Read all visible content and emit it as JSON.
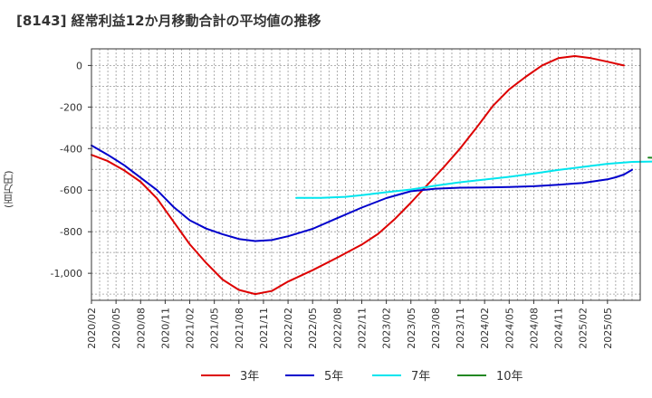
{
  "chart_data": {
    "type": "line",
    "title": "[8143]  経常利益12か月移動合計の平均値の推移",
    "ylabel": "(百万円)",
    "xlabel": "",
    "ylim": [
      -1130,
      80
    ],
    "yticks": [
      0,
      -200,
      -400,
      -600,
      -800,
      -1000
    ],
    "ytick_labels": [
      "0",
      "-200",
      "-400",
      "-600",
      "-800",
      "-1,000"
    ],
    "xticks": [
      "2020/02",
      "2020/05",
      "2020/08",
      "2020/11",
      "2021/02",
      "2021/05",
      "2021/08",
      "2021/11",
      "2022/02",
      "2022/05",
      "2022/08",
      "2022/11",
      "2023/02",
      "2023/05",
      "2023/08",
      "2023/11",
      "2024/02",
      "2024/05",
      "2024/08",
      "2024/11",
      "2025/02",
      "2025/05"
    ],
    "grid": true,
    "legend_position": "bottom",
    "series": [
      {
        "name": "3年",
        "color": "#dd0000",
        "points": [
          [
            "2020/02",
            -430
          ],
          [
            "2020/04",
            -460
          ],
          [
            "2020/06",
            -505
          ],
          [
            "2020/08",
            -560
          ],
          [
            "2020/10",
            -640
          ],
          [
            "2020/12",
            -750
          ],
          [
            "2021/02",
            -860
          ],
          [
            "2021/04",
            -950
          ],
          [
            "2021/06",
            -1030
          ],
          [
            "2021/08",
            -1080
          ],
          [
            "2021/10",
            -1100
          ],
          [
            "2021/12",
            -1085
          ],
          [
            "2022/02",
            -1040
          ],
          [
            "2022/05",
            -985
          ],
          [
            "2022/08",
            -925
          ],
          [
            "2022/11",
            -862
          ],
          [
            "2023/01",
            -810
          ],
          [
            "2023/03",
            -740
          ],
          [
            "2023/05",
            -660
          ],
          [
            "2023/07",
            -575
          ],
          [
            "2023/09",
            -490
          ],
          [
            "2023/11",
            -400
          ],
          [
            "2024/01",
            -300
          ],
          [
            "2024/03",
            -195
          ],
          [
            "2024/05",
            -115
          ],
          [
            "2024/07",
            -55
          ],
          [
            "2024/09",
            0
          ],
          [
            "2024/11",
            35
          ],
          [
            "2025/01",
            45
          ],
          [
            "2025/03",
            35
          ],
          [
            "2025/05",
            18
          ],
          [
            "2025/07",
            0
          ]
        ]
      },
      {
        "name": "5年",
        "color": "#0000cc",
        "points": [
          [
            "2020/02",
            -385
          ],
          [
            "2020/04",
            -430
          ],
          [
            "2020/06",
            -480
          ],
          [
            "2020/08",
            -540
          ],
          [
            "2020/10",
            -600
          ],
          [
            "2020/12",
            -680
          ],
          [
            "2021/02",
            -745
          ],
          [
            "2021/04",
            -785
          ],
          [
            "2021/06",
            -812
          ],
          [
            "2021/08",
            -835
          ],
          [
            "2021/10",
            -845
          ],
          [
            "2021/12",
            -840
          ],
          [
            "2022/02",
            -822
          ],
          [
            "2022/05",
            -786
          ],
          [
            "2022/08",
            -735
          ],
          [
            "2022/11",
            -684
          ],
          [
            "2023/02",
            -638
          ],
          [
            "2023/05",
            -605
          ],
          [
            "2023/08",
            -593
          ],
          [
            "2023/11",
            -588
          ],
          [
            "2024/02",
            -587
          ],
          [
            "2024/05",
            -585
          ],
          [
            "2024/08",
            -581
          ],
          [
            "2024/11",
            -574
          ],
          [
            "2025/02",
            -565
          ],
          [
            "2025/05",
            -548
          ],
          [
            "2025/06",
            -538
          ],
          [
            "2025/07",
            -525
          ],
          [
            "2025/08",
            -502
          ]
        ]
      },
      {
        "name": "7年",
        "color": "#00e5ee",
        "points": [
          [
            "2022/03",
            -637
          ],
          [
            "2022/06",
            -637
          ],
          [
            "2022/09",
            -632
          ],
          [
            "2022/11",
            -624
          ],
          [
            "2023/02",
            -610
          ],
          [
            "2023/05",
            -597
          ],
          [
            "2023/08",
            -578
          ],
          [
            "2023/11",
            -562
          ],
          [
            "2024/02",
            -549
          ],
          [
            "2024/05",
            -536
          ],
          [
            "2024/08",
            -520
          ],
          [
            "2024/11",
            -503
          ],
          [
            "2025/02",
            -488
          ],
          [
            "2025/05",
            -473
          ],
          [
            "2025/08",
            -464
          ],
          [
            "2025/11",
            -462
          ]
        ]
      },
      {
        "name": "10年",
        "color": "#228822",
        "points": [
          [
            "2025/10",
            -443
          ],
          [
            "2025/11",
            -445
          ]
        ]
      }
    ]
  }
}
